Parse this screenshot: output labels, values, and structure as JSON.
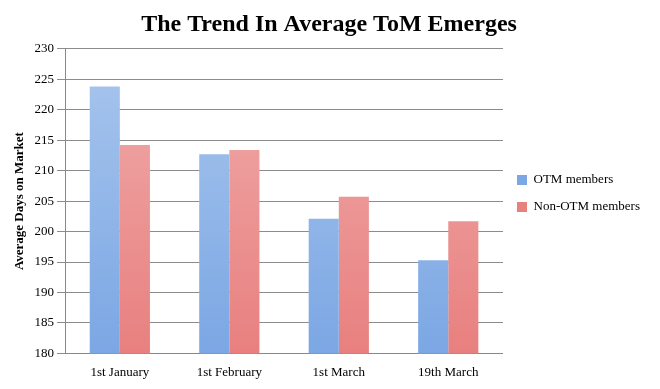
{
  "chart_data": {
    "type": "bar",
    "title": "The Trend In Average ToM Emerges",
    "y_label": "Average Days on Market",
    "categories": [
      "1st January",
      "1st February",
      "1st March",
      "19th March"
    ],
    "series": [
      {
        "name": "OTM members",
        "color": "#7ba7e4",
        "values": [
          223.8,
          212.7,
          202.1,
          195.3
        ]
      },
      {
        "name": "Non-OTM members",
        "color": "#e8807f",
        "values": [
          214.2,
          213.4,
          205.7,
          201.7
        ]
      }
    ],
    "ylim": [
      180,
      230
    ],
    "yticks": [
      180,
      185,
      190,
      195,
      200,
      205,
      210,
      215,
      220,
      225,
      230
    ],
    "grid": true,
    "legend": "right"
  }
}
